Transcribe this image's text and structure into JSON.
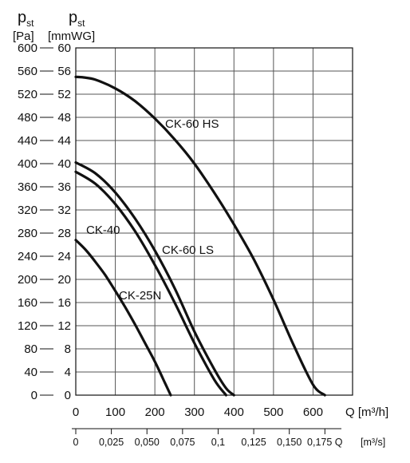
{
  "chart_data": {
    "type": "line",
    "y_left": {
      "header": "p",
      "header_sub": "st",
      "unit": "[Pa]",
      "range": [
        0,
        600
      ],
      "ticks": [
        0,
        40,
        80,
        120,
        160,
        200,
        240,
        280,
        320,
        360,
        400,
        440,
        480,
        520,
        560,
        600
      ]
    },
    "y_right": {
      "header": "p",
      "header_sub": "st",
      "unit": "[mmWG]",
      "range": [
        0,
        60
      ],
      "ticks": [
        0,
        4,
        8,
        12,
        16,
        20,
        24,
        28,
        32,
        36,
        40,
        44,
        48,
        52,
        56,
        60
      ]
    },
    "x_m3h": {
      "label": "Q",
      "unit": "[m³/h]",
      "range": [
        0,
        700
      ],
      "ticks": [
        0,
        100,
        200,
        300,
        400,
        500,
        600
      ],
      "tick_labels": [
        "0",
        "100",
        "200",
        "300",
        "400",
        "500",
        "600"
      ]
    },
    "x_m3s": {
      "label": "Q",
      "unit": "[m³/s]",
      "ticks": [
        0,
        0.025,
        0.05,
        0.075,
        0.1,
        0.125,
        0.15,
        0.175
      ],
      "tick_labels": [
        "0",
        "0,025",
        "0,050",
        "0,075",
        "0,1",
        "0,125",
        "0,150",
        "0,175 Q"
      ]
    },
    "series": [
      {
        "name": "CK-60 HS",
        "x": [
          0,
          20,
          50,
          100,
          150,
          200,
          250,
          300,
          350,
          400,
          450,
          500,
          550,
          600,
          630
        ],
        "y": [
          550,
          549,
          545,
          530,
          508,
          478,
          442,
          400,
          350,
          295,
          235,
          165,
          88,
          18,
          0
        ]
      },
      {
        "name": "CK-60 LS",
        "x": [
          0,
          50,
          100,
          150,
          200,
          250,
          300,
          350,
          380,
          400
        ],
        "y": [
          402,
          383,
          350,
          305,
          250,
          185,
          110,
          45,
          12,
          0
        ]
      },
      {
        "name": "CK-40",
        "x": [
          0,
          50,
          100,
          150,
          200,
          250,
          300,
          350,
          380
        ],
        "y": [
          386,
          365,
          330,
          283,
          225,
          160,
          90,
          27,
          0
        ]
      },
      {
        "name": "CK-25N",
        "x": [
          0,
          25,
          50,
          75,
          100,
          125,
          150,
          175,
          200,
          225,
          240
        ],
        "y": [
          268,
          251,
          230,
          207,
          180,
          152,
          122,
          90,
          58,
          22,
          0
        ]
      }
    ]
  }
}
